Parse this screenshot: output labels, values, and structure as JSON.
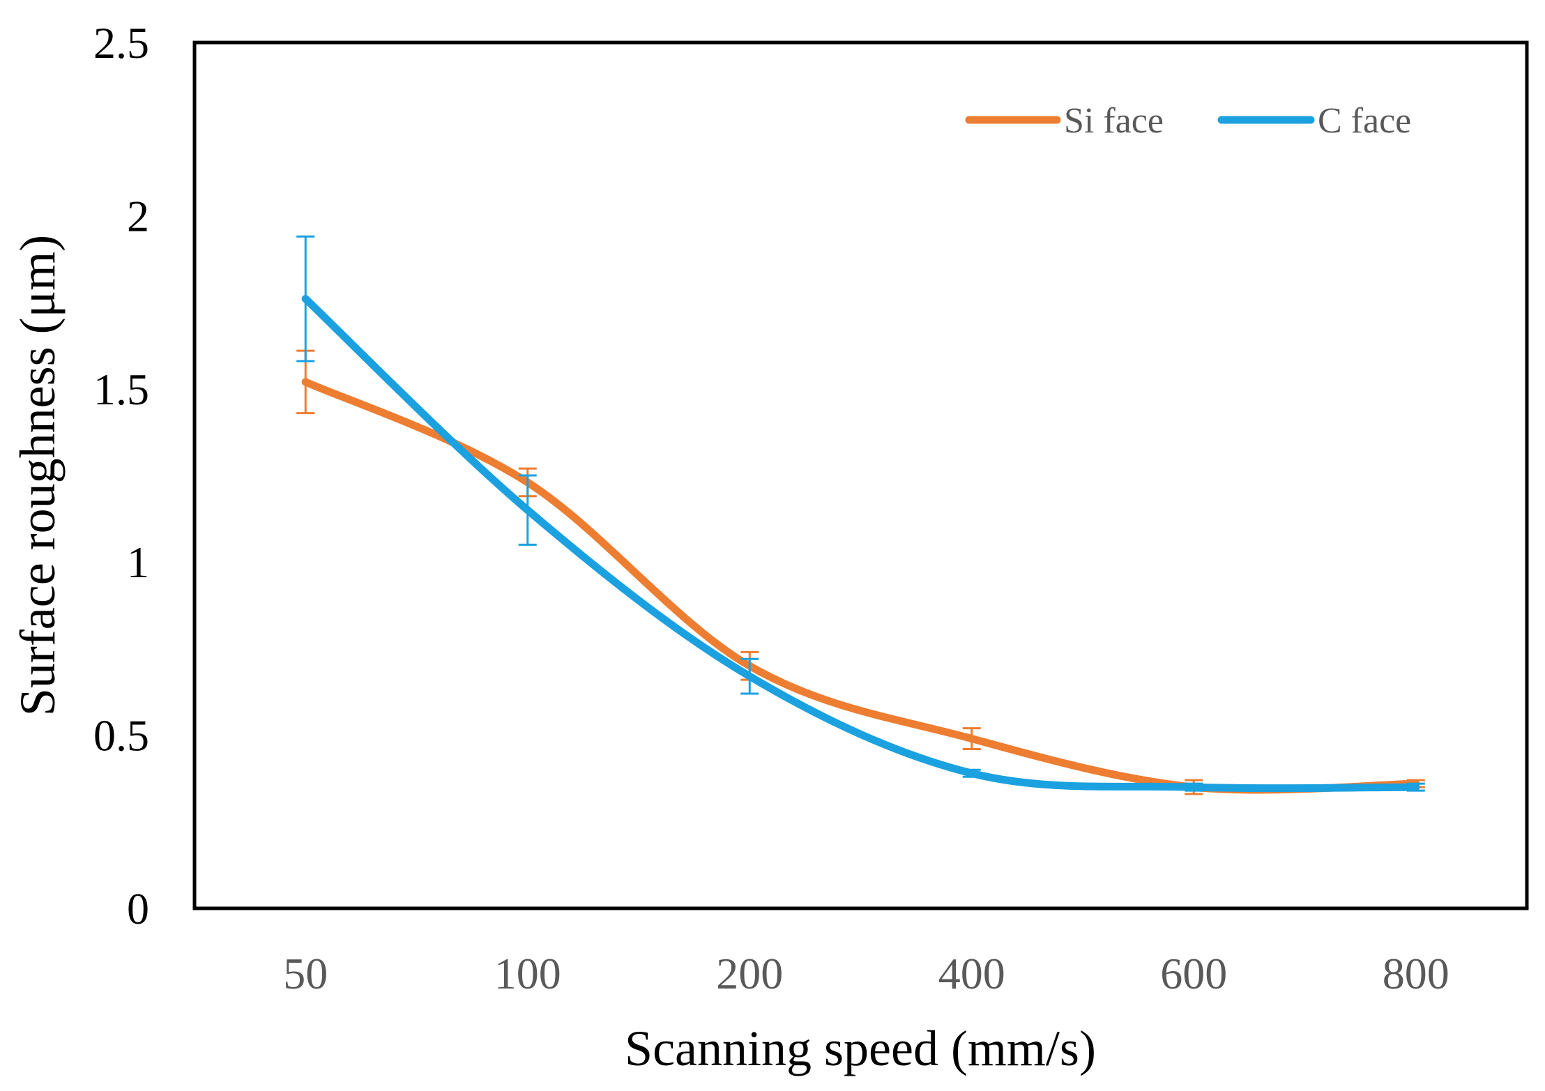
{
  "chart_data": {
    "type": "line",
    "title": "",
    "xlabel": "Scanning speed (mm/s)",
    "ylabel": "Surface roughness (μm)",
    "categories": [
      "50",
      "100",
      "200",
      "400",
      "600",
      "800"
    ],
    "ylim": [
      0,
      2.5
    ],
    "yticks": [
      "0",
      "0.5",
      "1",
      "1.5",
      "2",
      "2.5"
    ],
    "grid": false,
    "legend_position": "top-right",
    "smooth": true,
    "series": [
      {
        "name": "Si face",
        "color": "#ED7D31",
        "values": [
          1.52,
          1.23,
          0.7,
          0.49,
          0.35,
          0.36
        ],
        "error": [
          0.09,
          0.04,
          0.04,
          0.03,
          0.02,
          0.01
        ]
      },
      {
        "name": "C face",
        "color": "#1BA1DF",
        "values": [
          1.76,
          1.15,
          0.67,
          0.39,
          0.35,
          0.35
        ],
        "error": [
          0.18,
          0.1,
          0.05,
          0.01,
          0.01,
          0.01
        ]
      }
    ]
  }
}
